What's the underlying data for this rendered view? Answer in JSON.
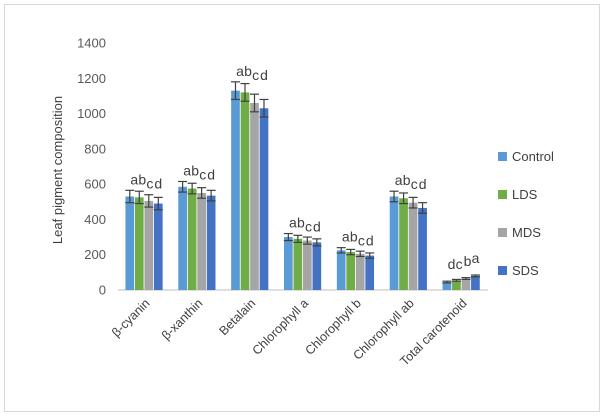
{
  "chart_data": {
    "type": "bar",
    "title": "",
    "xlabel": "",
    "ylabel": "Leaf pigment composition",
    "ylim": [
      0,
      1400
    ],
    "yticks": [
      0,
      200,
      400,
      600,
      800,
      1000,
      1200,
      1400
    ],
    "grid": false,
    "legend_position": "right",
    "categories": [
      "β-cyanin",
      "β-xanthin",
      "Betalain",
      "Chlorophyll a",
      "Chlorophyll b",
      "Chlorophyll ab",
      "Total carotenoid"
    ],
    "series": [
      {
        "name": "Control",
        "color": "#5b9bd5",
        "values": [
          530,
          585,
          1130,
          300,
          225,
          530,
          45
        ],
        "errors": [
          35,
          30,
          50,
          20,
          15,
          30,
          5
        ]
      },
      {
        "name": "LDS",
        "color": "#70ad47",
        "values": [
          525,
          575,
          1120,
          290,
          215,
          520,
          55
        ],
        "errors": [
          35,
          30,
          50,
          20,
          15,
          30,
          5
        ]
      },
      {
        "name": "MDS",
        "color": "#a5a5a5",
        "values": [
          505,
          550,
          1060,
          280,
          205,
          495,
          65
        ],
        "errors": [
          35,
          30,
          50,
          20,
          15,
          30,
          5
        ]
      },
      {
        "name": "SDS",
        "color": "#4472c4",
        "values": [
          490,
          535,
          1030,
          270,
          195,
          465,
          80
        ],
        "errors": [
          35,
          30,
          50,
          20,
          15,
          30,
          5
        ]
      }
    ],
    "annotations": [
      [
        "a",
        "b",
        "c",
        "d"
      ],
      [
        "a",
        "b",
        "c",
        "d"
      ],
      [
        "a",
        "b",
        "c",
        "d"
      ],
      [
        "a",
        "b",
        "c",
        "d"
      ],
      [
        "a",
        "b",
        "c",
        "d"
      ],
      [
        "a",
        "b",
        "c",
        "d"
      ],
      [
        "d",
        "c",
        "b",
        "a"
      ]
    ]
  }
}
